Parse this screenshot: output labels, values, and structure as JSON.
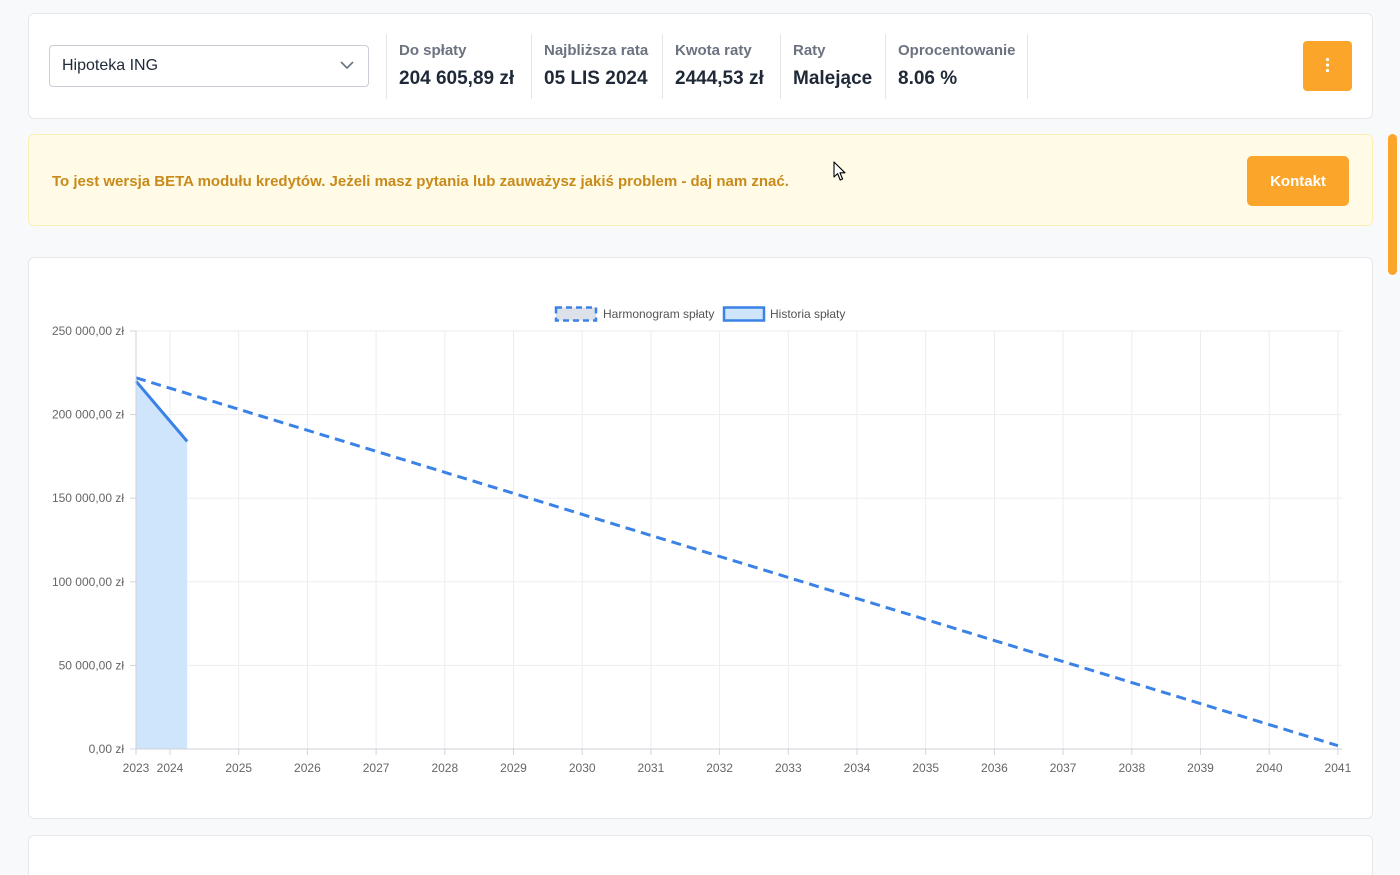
{
  "header": {
    "loan_select": {
      "value": "Hipoteka ING",
      "icon": "chevron-down-icon"
    },
    "stats": [
      {
        "label": "Do spłaty",
        "value": "204 605,89 zł"
      },
      {
        "label": "Najbliższa rata",
        "value": "05 LIS 2024"
      },
      {
        "label": "Kwota raty",
        "value": "2444,53 zł"
      },
      {
        "label": "Raty",
        "value": "Malejące"
      },
      {
        "label": "Oprocentowanie",
        "value": "8.06 %"
      }
    ],
    "menu_icon": "vertical-dots-icon"
  },
  "banner": {
    "message": "To jest wersja BETA modułu kredytów. Jeżeli masz pytania lub zauważysz jakiś problem - daj nam znać.",
    "contact_label": "Kontakt"
  },
  "colors": {
    "accent": "#fba52b",
    "banner_text": "#c88a1b",
    "banner_bg": "#fffbe6",
    "line": "#3b82e6",
    "fill": "#cfe5fc"
  },
  "chart_data": {
    "type": "line",
    "legend": {
      "position": "top",
      "entries": [
        "Harmonogram spłaty",
        "Historia spłaty"
      ]
    },
    "xlabel": "",
    "ylabel": "",
    "xlim": [
      2023,
      2041
    ],
    "ylim": [
      0,
      250000
    ],
    "x_ticks": [
      "2023",
      "2024",
      "2025",
      "2026",
      "2027",
      "2028",
      "2029",
      "2030",
      "2031",
      "2032",
      "2033",
      "2034",
      "2035",
      "2036",
      "2037",
      "2038",
      "2039",
      "2040",
      "2041"
    ],
    "y_ticks": [
      "0,00 zł",
      "50 000,00 zł",
      "100 000,00 zł",
      "150 000,00 zł",
      "200 000,00 zł",
      "250 000,00 zł"
    ],
    "y_tick_values": [
      0,
      50000,
      100000,
      150000,
      200000,
      250000
    ],
    "grid": true,
    "series": [
      {
        "name": "Harmonogram spłaty",
        "style": "dashed",
        "filled": false,
        "points": [
          [
            2023.0,
            222000
          ],
          [
            2041.0,
            2000
          ]
        ]
      },
      {
        "name": "Historia spłaty",
        "style": "solid",
        "filled": true,
        "points": [
          [
            2023.0,
            220000
          ],
          [
            2024.25,
            184000
          ]
        ]
      }
    ]
  }
}
